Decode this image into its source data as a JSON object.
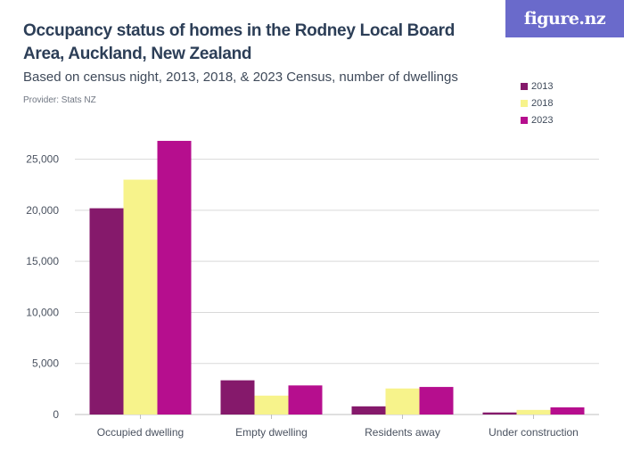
{
  "header": {
    "title": "Occupancy status of homes in the Rodney Local Board Area, Auckland, New Zealand",
    "subtitle": "Based on census night, 2013, 2018, & 2023 Census, number of dwellings",
    "provider": "Provider: Stats NZ",
    "logo_text": "figure.nz"
  },
  "chart_data": {
    "type": "bar",
    "title": "Occupancy status of homes in the Rodney Local Board Area, Auckland, New Zealand",
    "subtitle": "Based on census night, 2013, 2018, & 2023 Census, number of dwellings",
    "xlabel": "",
    "ylabel": "",
    "categories": [
      "Occupied dwelling",
      "Empty dwelling",
      "Residents away",
      "Under construction"
    ],
    "series": [
      {
        "name": "2013",
        "color": "#85196b",
        "values": [
          20200,
          3350,
          800,
          200
        ]
      },
      {
        "name": "2018",
        "color": "#f7f38b",
        "values": [
          23000,
          1850,
          2550,
          450
        ]
      },
      {
        "name": "2023",
        "color": "#b60e8e",
        "values": [
          26800,
          2850,
          2700,
          700
        ]
      }
    ],
    "ylim": [
      0,
      27500
    ],
    "yticks": [
      0,
      5000,
      10000,
      15000,
      20000,
      25000
    ],
    "ytick_labels": [
      "0",
      "5,000",
      "10,000",
      "15,000",
      "20,000",
      "25,000"
    ],
    "grid": true,
    "legend_position": "top-right"
  }
}
